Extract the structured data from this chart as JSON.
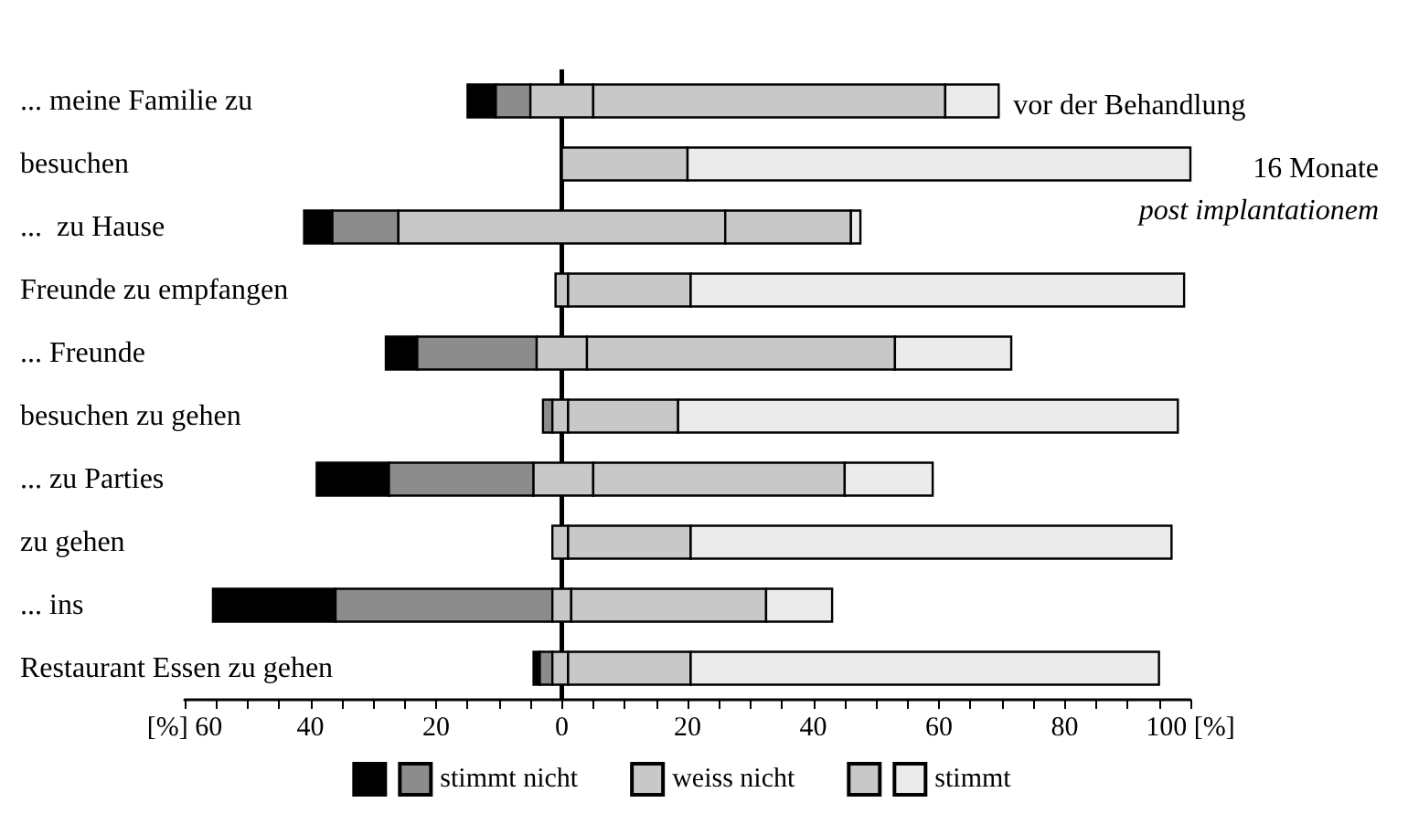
{
  "chart_data": {
    "type": "bar",
    "orientation": "horizontal",
    "categories": [
      "... meine Familie zu",
      "besuchen",
      "...  zu Hause",
      "Freunde zu empfangen",
      "... Freunde",
      "besuchen zu gehen",
      "... zu Parties",
      "zu gehen",
      "... ins",
      "Restaurant Essen zu gehen"
    ],
    "series": [
      {
        "color": "#000000",
        "base": [
          -15,
          null,
          -41,
          null,
          -28,
          null,
          -39,
          null,
          -55.5,
          -4.5
        ],
        "values": [
          4.5,
          null,
          4.5,
          null,
          5,
          null,
          11.5,
          null,
          19.5,
          1
        ]
      },
      {
        "name": "stimmt nicht",
        "color": "#8c8c8c",
        "base": [
          -10.5,
          null,
          -36.5,
          null,
          -23,
          -3,
          -27.5,
          null,
          -36,
          -3.5
        ],
        "values": [
          5.5,
          null,
          10.5,
          null,
          19,
          1.5,
          23,
          null,
          34.5,
          2
        ]
      },
      {
        "name": "weiss nicht",
        "color": "#c8c8c8",
        "base": [
          -5,
          null,
          -26,
          -1,
          -4,
          -1.5,
          -4.5,
          -1.5,
          -1.5,
          -1.5
        ],
        "values": [
          10,
          null,
          52,
          2,
          8,
          2.5,
          9.5,
          2.5,
          3,
          2.5
        ]
      },
      {
        "color": "#c8c8c8",
        "base": [
          5,
          0,
          26,
          1,
          4,
          1,
          5,
          1,
          1.5,
          1
        ],
        "values": [
          56,
          20,
          20,
          19.5,
          49,
          17.5,
          40,
          19.5,
          31,
          19.5
        ]
      },
      {
        "name": "stimmt",
        "color": "#ebebeb",
        "base": [
          61,
          20,
          46,
          20.5,
          53,
          18.5,
          45,
          20.5,
          32.5,
          20.5
        ],
        "values": [
          8.5,
          80,
          1.5,
          78.5,
          18.5,
          79.5,
          14,
          76.5,
          10.5,
          74.5
        ]
      }
    ],
    "xlim": [
      -60,
      100
    ],
    "xticks": [
      {
        "value": -60,
        "label": "[%] 60"
      },
      {
        "value": -55,
        "label": null
      },
      {
        "value": -50,
        "label": null
      },
      {
        "value": -45,
        "label": null
      },
      {
        "value": -40,
        "label": "40"
      },
      {
        "value": -35,
        "label": null
      },
      {
        "value": -30,
        "label": null
      },
      {
        "value": -25,
        "label": null
      },
      {
        "value": -20,
        "label": "20"
      },
      {
        "value": -15,
        "label": null
      },
      {
        "value": -10,
        "label": null
      },
      {
        "value": -5,
        "label": null
      },
      0,
      {
        "value": 5,
        "label": null
      },
      {
        "value": 10,
        "label": null
      },
      {
        "value": 15,
        "label": null
      },
      20,
      {
        "value": 25,
        "label": null
      },
      {
        "value": 30,
        "label": null
      },
      {
        "value": 35,
        "label": null
      },
      40,
      {
        "value": 45,
        "label": null
      },
      {
        "value": 50,
        "label": null
      },
      {
        "value": 55,
        "label": null
      },
      60,
      {
        "value": 65,
        "label": null
      },
      {
        "value": 70,
        "label": null
      },
      {
        "value": 75,
        "label": null
      },
      80,
      {
        "value": 85,
        "label": null
      },
      {
        "value": 90,
        "label": null
      },
      {
        "value": 95,
        "label": null
      },
      {
        "value": 100,
        "label": "100 [%]"
      }
    ],
    "annotations": [
      {
        "text": "vor der Behandlung",
        "x": 69.5,
        "y": "... meine Familie zu"
      },
      {
        "text": "16 Monate\npost implantationem",
        "x": 100,
        "y": "besuchen"
      }
    ],
    "ref_lines": [
      {
        "axis": "x",
        "value": 0
      }
    ],
    "grid": false,
    "legend": "bottom"
  }
}
